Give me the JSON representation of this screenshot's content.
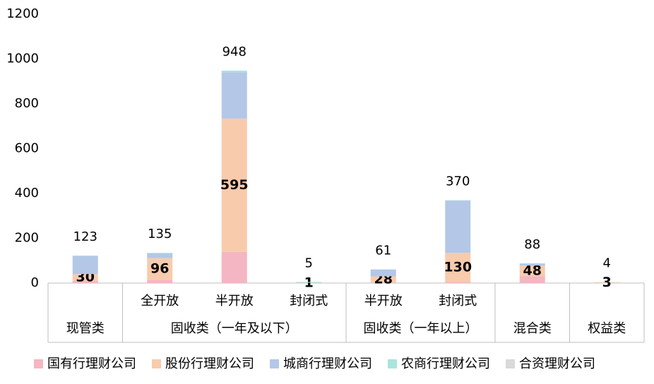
{
  "chart_data": {
    "type": "bar",
    "stacked": true,
    "categories": [
      null,
      "全开放",
      "半开放",
      "封闭式",
      "半开放",
      "封闭式",
      null,
      null
    ],
    "groups": [
      {
        "name": "现管类",
        "count": 1
      },
      {
        "name": "固收类（一年及以下）",
        "count": 3
      },
      {
        "name": "固收类（一年以上）",
        "count": 2
      },
      {
        "name": "混合类",
        "count": 1
      },
      {
        "name": "权益类",
        "count": 1
      }
    ],
    "series": [
      {
        "name": "国有行理财公司",
        "color": "#f4b6c2",
        "values": [
          10,
          15,
          139,
          0,
          2,
          5,
          30,
          0
        ]
      },
      {
        "name": "股份行理财公司",
        "color": "#f8cbad",
        "values": [
          30,
          96,
          595,
          1,
          28,
          130,
          48,
          3
        ]
      },
      {
        "name": "城商行理财公司",
        "color": "#b4c7e7",
        "values": [
          80,
          22,
          206,
          1,
          30,
          233,
          9,
          0
        ]
      },
      {
        "name": "农商行理财公司",
        "color": "#a9e5dc",
        "values": [
          3,
          2,
          8,
          3,
          1,
          2,
          1,
          1
        ]
      },
      {
        "name": "合资理财公司",
        "color": "#d9d9d9",
        "values": [
          0,
          0,
          0,
          0,
          0,
          0,
          0,
          0
        ]
      }
    ],
    "labeled_series": 1,
    "totals": [
      123,
      135,
      948,
      5,
      61,
      370,
      88,
      4
    ],
    "ylim": [
      0,
      1200
    ],
    "yticks": [
      0,
      200,
      400,
      600,
      800,
      1000,
      1200
    ],
    "grid": false
  }
}
